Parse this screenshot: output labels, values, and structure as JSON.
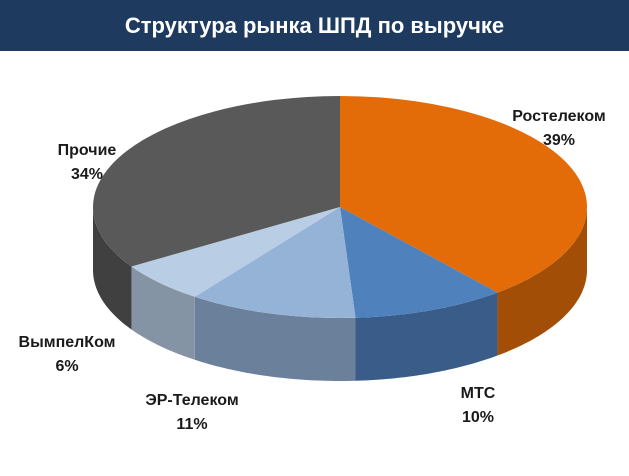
{
  "header": {
    "title": "Структура рынка ШПД по выручке"
  },
  "colors": {
    "header_bg": "#1f3a5f",
    "label_text": "#1a1a1a"
  },
  "chart_data": {
    "type": "pie",
    "title": "Структура рынка ШПД по выручке",
    "three_d": true,
    "legend": "none",
    "unit": "%",
    "series": [
      {
        "name": "Ростелеком",
        "value": 39,
        "label": "39%",
        "color": "#e36c09"
      },
      {
        "name": "МТС",
        "value": 10,
        "label": "10%",
        "color": "#4f81bd"
      },
      {
        "name": "ЭР-Телеком",
        "value": 11,
        "label": "11%",
        "color": "#95b3d7"
      },
      {
        "name": "ВымпелКом",
        "value": 6,
        "label": "6%",
        "color": "#b9cde5"
      },
      {
        "name": "Прочие",
        "value": 34,
        "label": "34%",
        "color": "#595959"
      }
    ]
  }
}
